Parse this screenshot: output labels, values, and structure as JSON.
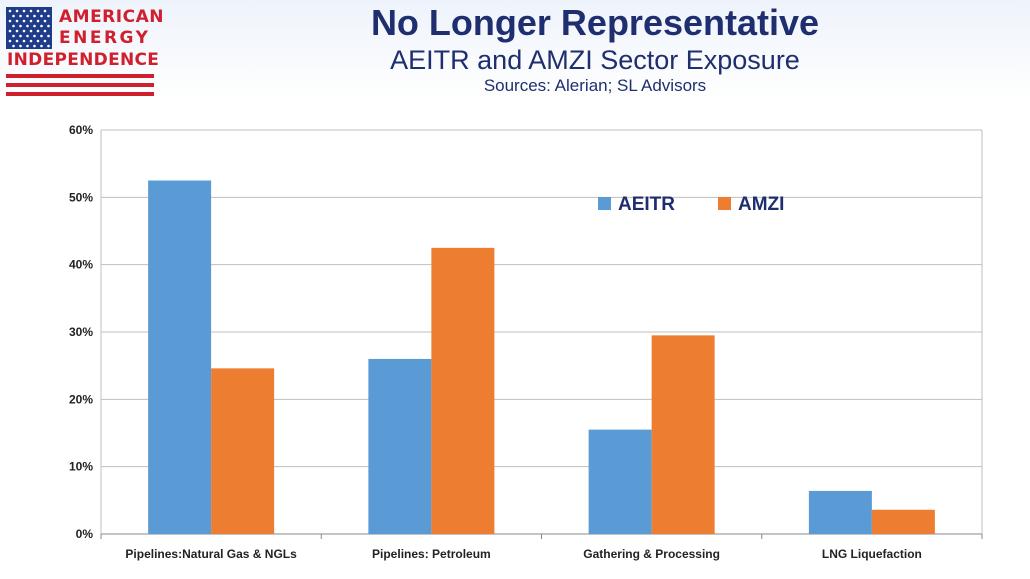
{
  "logo": {
    "line1": "AMERICAN",
    "line2": "ENERGY",
    "line3": "INDEPENDENCE",
    "flag_icon": "us-flag-icon",
    "colors": {
      "red": "#d0202e",
      "blue": "#1f3c8a"
    }
  },
  "header": {
    "title": "No Longer Representative",
    "subtitle": "AEITR and AMZI Sector Exposure",
    "sources": "Sources: Alerian; SL Advisors"
  },
  "chart_data": {
    "type": "bar",
    "categories": [
      "Pipelines:Natural Gas & NGLs",
      "Pipelines: Petroleum",
      "Gathering & Processing",
      "LNG Liquefaction"
    ],
    "series": [
      {
        "name": "AEITR",
        "values": [
          52.5,
          26.0,
          15.5,
          6.4
        ],
        "color": "#5b9bd5"
      },
      {
        "name": "AMZI",
        "values": [
          24.6,
          42.5,
          29.5,
          3.6
        ],
        "color": "#ed7d31"
      }
    ],
    "ylim": [
      0,
      60
    ],
    "yticks": [
      "0%",
      "10%",
      "20%",
      "30%",
      "40%",
      "50%",
      "60%"
    ],
    "ytick_values": [
      0,
      10,
      20,
      30,
      40,
      50,
      60
    ],
    "grid": true,
    "legend_position": "top-right"
  }
}
